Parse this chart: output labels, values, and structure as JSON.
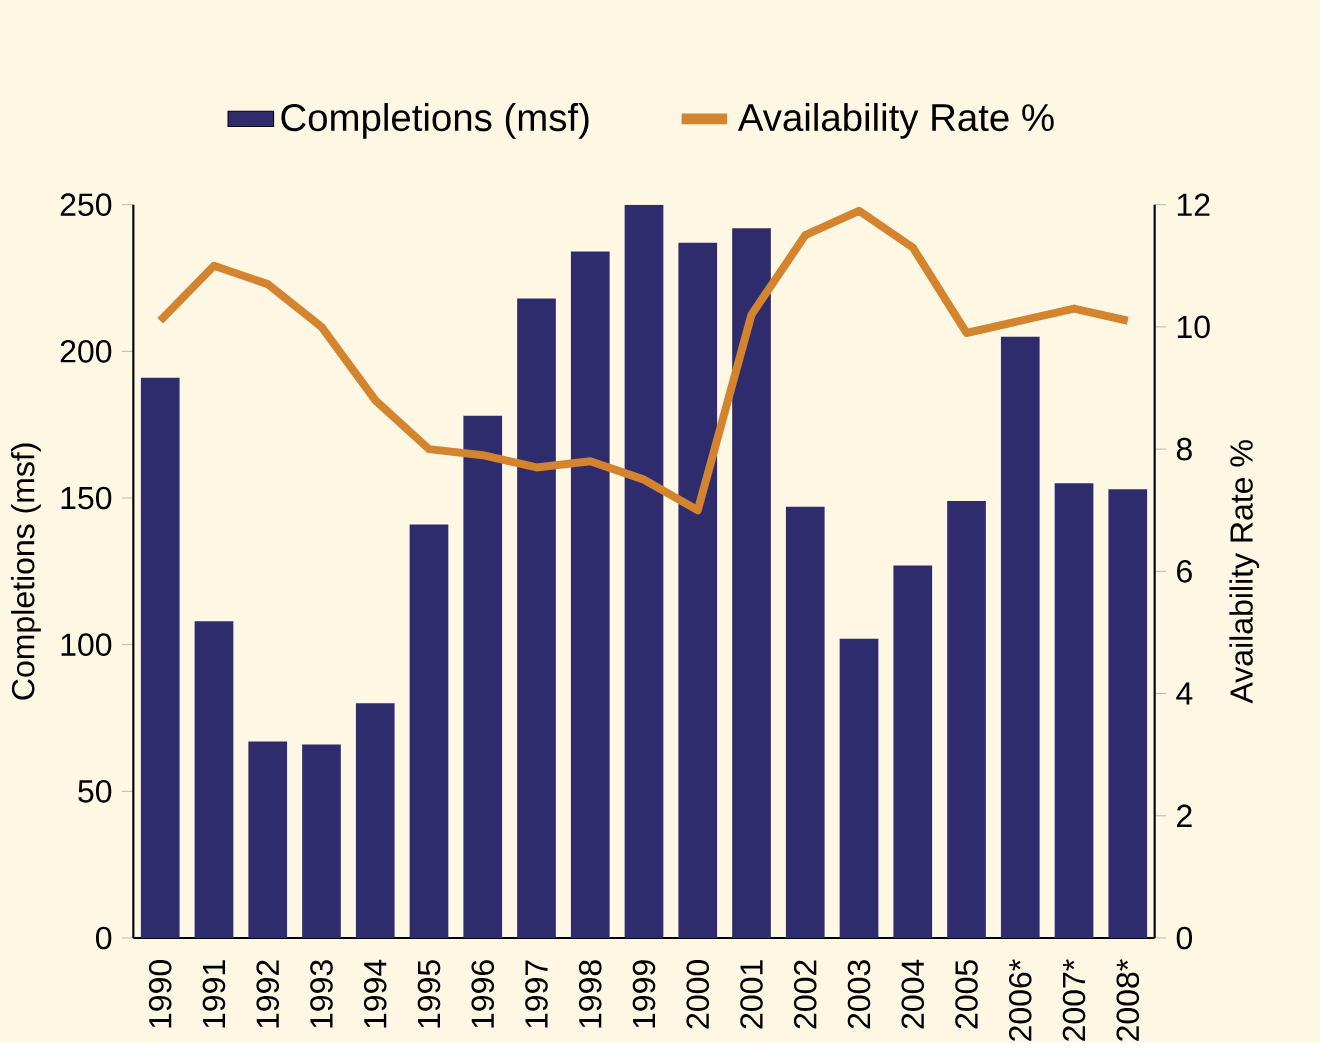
{
  "chart_data": {
    "type": "bar",
    "categories": [
      "1990",
      "1991",
      "1992",
      "1993",
      "1994",
      "1995",
      "1996",
      "1997",
      "1998",
      "1999",
      "2000",
      "2001",
      "2002",
      "2003",
      "2004",
      "2005",
      "2006*",
      "2007*",
      "2008*"
    ],
    "series": [
      {
        "name": "Completions (msf)",
        "color": "#2e2c6c",
        "values": [
          191,
          108,
          67,
          66,
          80,
          141,
          178,
          218,
          234,
          250,
          237,
          242,
          147,
          102,
          127,
          149,
          205,
          155,
          153
        ]
      },
      {
        "name": "Availability Rate %",
        "type": "line",
        "axis": "y2",
        "color": "#d4842e",
        "values": [
          10.1,
          11.0,
          10.7,
          10.0,
          8.8,
          8.0,
          7.9,
          7.7,
          7.8,
          7.5,
          7.0,
          10.2,
          11.5,
          11.9,
          11.3,
          9.9,
          10.1,
          10.3,
          10.1
        ]
      }
    ],
    "ylabel": "Completions (msf)",
    "y2label": "Availability Rate %",
    "ylim": [
      0,
      250
    ],
    "yticks": [
      0,
      50,
      100,
      150,
      200,
      250
    ],
    "y2lim": [
      0,
      12
    ],
    "y2ticks": [
      0,
      2,
      4,
      6,
      8,
      10,
      12
    ],
    "legend": "top",
    "marker": "none",
    "grid": false
  }
}
